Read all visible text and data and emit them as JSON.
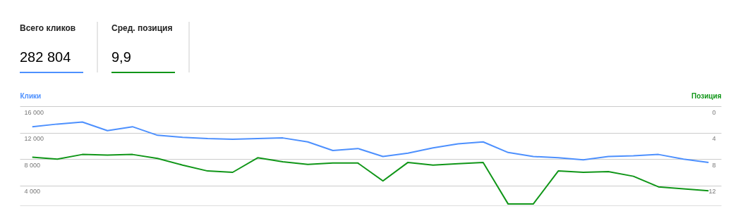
{
  "chart_data": {
    "type": "line",
    "annotations": [
      "Всего кликов",
      "282 804",
      "Сред. позиция",
      "9,9"
    ],
    "ylabel": "Клики",
    "y2label": "Позиция",
    "categories": [
      null,
      null,
      null,
      null,
      null,
      null,
      null,
      null,
      null,
      null,
      null,
      null,
      null,
      null,
      null,
      null,
      null,
      null,
      null,
      null,
      null,
      null,
      null,
      null,
      null,
      null,
      null,
      null
    ],
    "series": [
      {
        "color": "#4d90fe",
        "values": [
          12900,
          13300,
          13600,
          12300,
          12900,
          11600,
          11300,
          11100,
          11000,
          11100,
          11200,
          10600,
          9300,
          9600,
          8400,
          8900,
          9700,
          10300,
          10600,
          9000,
          8400,
          8200,
          7900,
          8400,
          8500,
          8700,
          8000,
          7500
        ]
      },
      {
        "color": "#109618",
        "axis": "y2",
        "values": [
          7.7,
          8.0,
          7.3,
          7.4,
          7.3,
          7.9,
          8.9,
          9.8,
          10.0,
          7.8,
          8.4,
          8.8,
          8.6,
          8.6,
          11.3,
          8.5,
          8.9,
          8.7,
          8.5,
          14.8,
          14.8,
          9.8,
          10.0,
          9.9,
          10.6,
          12.2,
          12.5,
          12.8
        ]
      }
    ],
    "ylim": [
      1000,
      16000
    ],
    "yticks": [
      {
        "value": 4000,
        "label": "4 000"
      },
      {
        "value": 8000,
        "label": "8 000"
      },
      {
        "value": 12000,
        "label": "12 000"
      },
      {
        "value": 16000,
        "label": "16 000"
      }
    ],
    "y2lim": [
      15,
      0
    ],
    "y2ticks": [
      0,
      4,
      8,
      12
    ],
    "grid": "y",
    "tick_labels": "y",
    "line_style": "solid",
    "marker": "none"
  }
}
